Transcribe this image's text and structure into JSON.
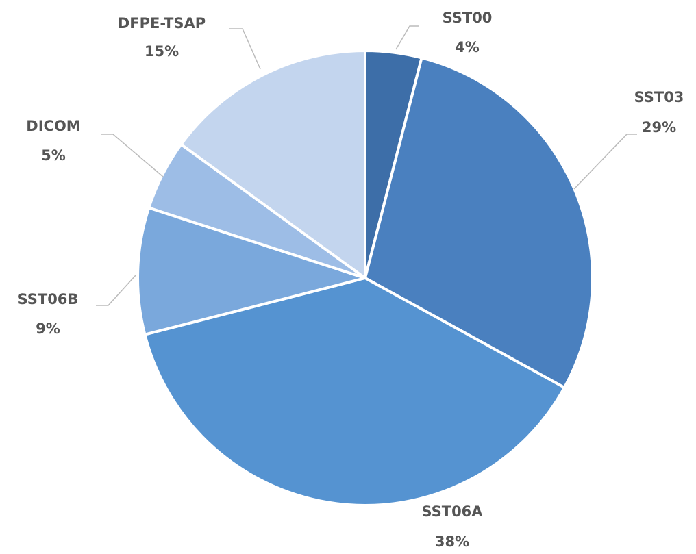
{
  "chart_data": {
    "type": "pie",
    "categories": [
      "SST00",
      "SST03",
      "SST06A",
      "SST06B",
      "DICOM",
      "DFPE-TSAP"
    ],
    "values": [
      4,
      29,
      38,
      9,
      5,
      15
    ],
    "value_labels": [
      "4%",
      "29%",
      "38%",
      "9%",
      "5%",
      "15%"
    ],
    "colors": [
      "#3d6ea8",
      "#4a80bf",
      "#5593d1",
      "#7aa8dc",
      "#9dbde6",
      "#c3d5ee"
    ]
  }
}
